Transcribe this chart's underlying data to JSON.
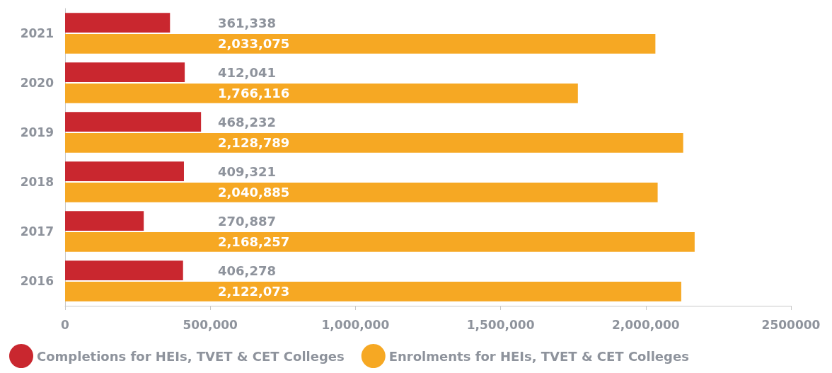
{
  "chart_data": {
    "type": "bar",
    "orientation": "horizontal",
    "categories": [
      "2021",
      "2020",
      "2019",
      "2018",
      "2017",
      "2016"
    ],
    "series": [
      {
        "name": "Completions for HEIs, TVET & CET Colleges",
        "color": "#c9272f",
        "values": [
          361338,
          412041,
          468232,
          409321,
          270887,
          406278
        ],
        "value_labels": [
          "361,338",
          "412,041",
          "468,232",
          "409,321",
          "270,887",
          "406,278"
        ]
      },
      {
        "name": "Enrolments for HEIs, TVET & CET Colleges",
        "color": "#f6a823",
        "values": [
          2033075,
          1766116,
          2128789,
          2040885,
          2168257,
          2122073
        ],
        "value_labels": [
          "2,033,075",
          "1,766,116",
          "2,128,789",
          "2,040,885",
          "2,168,257",
          "2,122,073"
        ]
      }
    ],
    "xlim": [
      0,
      2500000
    ],
    "xticks": [
      0,
      {
        "value": 500000,
        "label": "500,000"
      },
      {
        "value": 1000000,
        "label": "1,000,000"
      },
      {
        "value": 1500000,
        "label": "1,500,000"
      },
      {
        "value": 2000000,
        "label": "2,000,000"
      },
      2500000
    ],
    "grid": false,
    "legend": "bottom"
  }
}
